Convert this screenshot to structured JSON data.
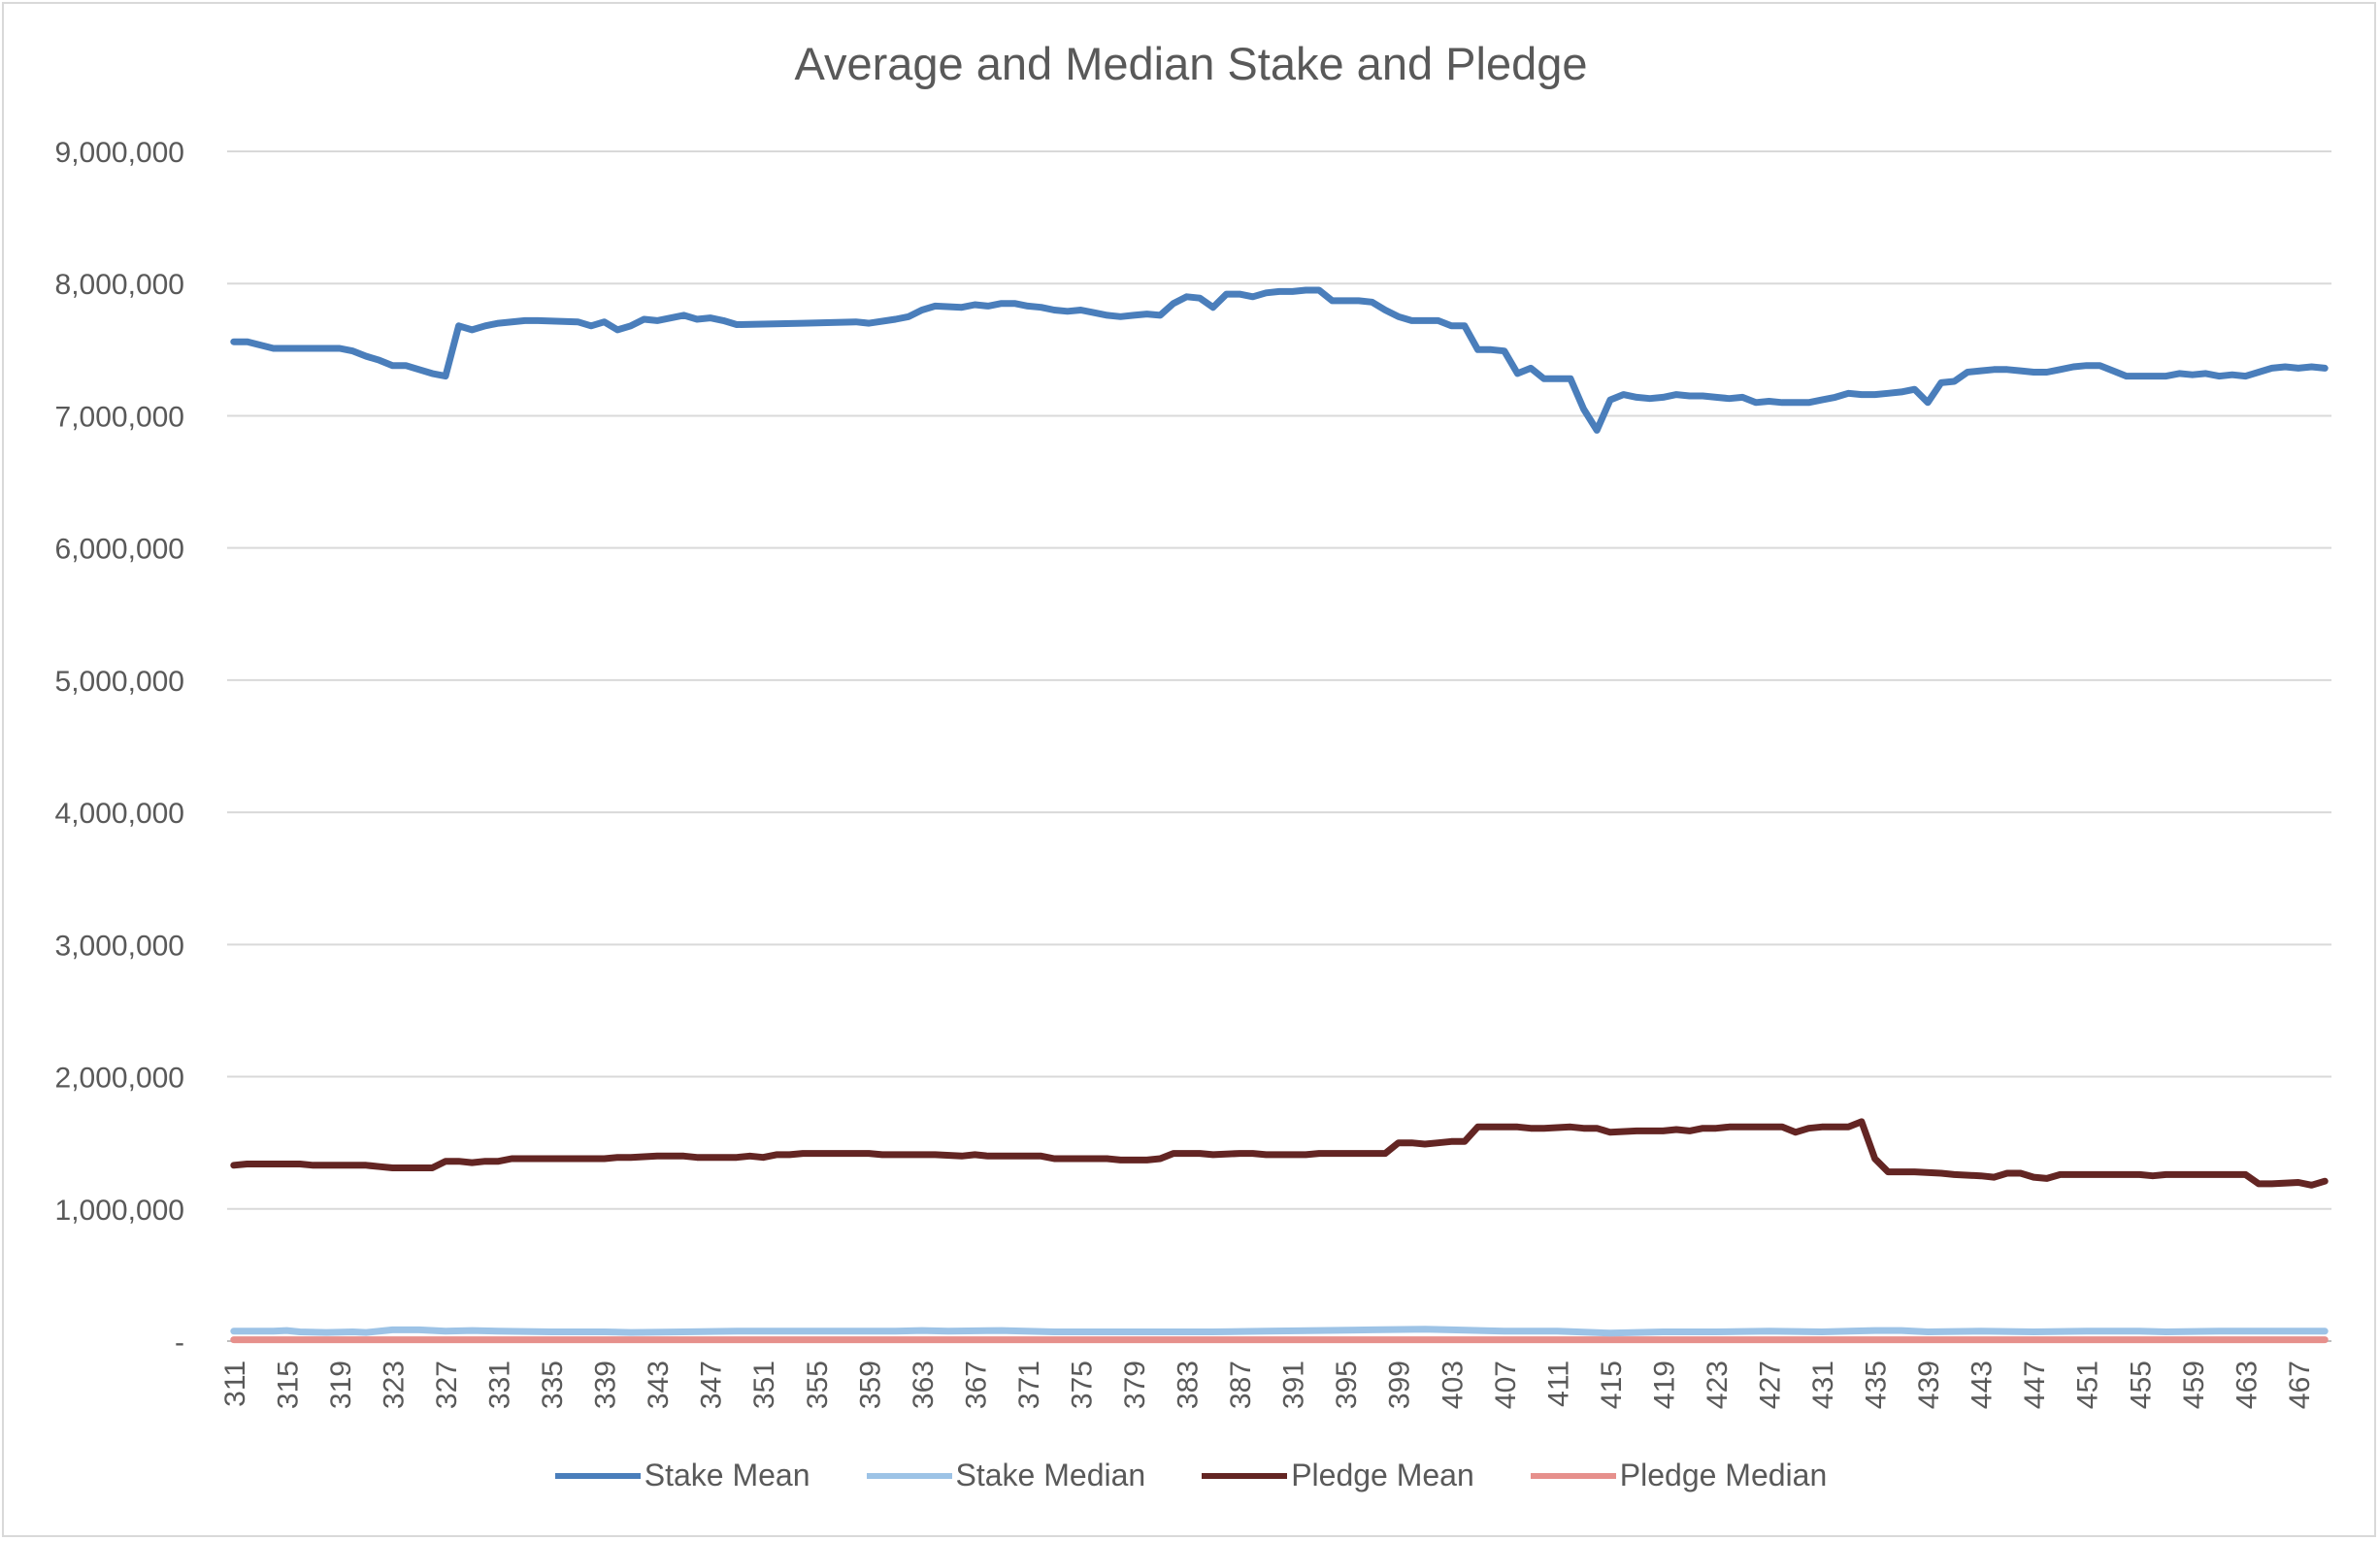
{
  "chart_data": {
    "type": "line",
    "title": "Average and Median Stake and Pledge",
    "xlabel": "",
    "ylabel": "",
    "x_start": 311,
    "x_end": 469,
    "x_tick_labels": [
      "311",
      "315",
      "319",
      "323",
      "327",
      "331",
      "335",
      "339",
      "343",
      "347",
      "351",
      "355",
      "359",
      "363",
      "367",
      "371",
      "375",
      "379",
      "383",
      "387",
      "391",
      "395",
      "399",
      "403",
      "407",
      "411",
      "415",
      "419",
      "423",
      "427",
      "431",
      "435",
      "439",
      "443",
      "447",
      "451",
      "455",
      "459",
      "463",
      "467"
    ],
    "y_tick_labels": [
      "-",
      "1,000,000",
      "2,000,000",
      "3,000,000",
      "4,000,000",
      "5,000,000",
      "6,000,000",
      "7,000,000",
      "8,000,000",
      "9,000,000"
    ],
    "ylim": [
      0,
      9000000
    ],
    "grid": "horizontal",
    "legend_position": "bottom",
    "series": [
      {
        "name": "Stake Mean",
        "color": "#4a7ebb",
        "points": [
          [
            311,
            7560000
          ],
          [
            312,
            7560000
          ],
          [
            314,
            7510000
          ],
          [
            319,
            7510000
          ],
          [
            320,
            7490000
          ],
          [
            321,
            7450000
          ],
          [
            322,
            7420000
          ],
          [
            323,
            7380000
          ],
          [
            324,
            7380000
          ],
          [
            325,
            7350000
          ],
          [
            326,
            7320000
          ],
          [
            327,
            7300000
          ],
          [
            328,
            7680000
          ],
          [
            329,
            7650000
          ],
          [
            330,
            7680000
          ],
          [
            331,
            7700000
          ],
          [
            333,
            7720000
          ],
          [
            334,
            7720000
          ],
          [
            337,
            7710000
          ],
          [
            338,
            7680000
          ],
          [
            339,
            7710000
          ],
          [
            340,
            7650000
          ],
          [
            341,
            7680000
          ],
          [
            342,
            7730000
          ],
          [
            343,
            7720000
          ],
          [
            345,
            7760000
          ],
          [
            346,
            7730000
          ],
          [
            347,
            7740000
          ],
          [
            348,
            7720000
          ],
          [
            349,
            7690000
          ],
          [
            354,
            7700000
          ],
          [
            358,
            7710000
          ],
          [
            359,
            7700000
          ],
          [
            361,
            7730000
          ],
          [
            362,
            7750000
          ],
          [
            363,
            7800000
          ],
          [
            364,
            7830000
          ],
          [
            366,
            7820000
          ],
          [
            367,
            7840000
          ],
          [
            368,
            7830000
          ],
          [
            369,
            7850000
          ],
          [
            370,
            7850000
          ],
          [
            371,
            7830000
          ],
          [
            372,
            7820000
          ],
          [
            373,
            7800000
          ],
          [
            374,
            7790000
          ],
          [
            375,
            7800000
          ],
          [
            376,
            7780000
          ],
          [
            377,
            7760000
          ],
          [
            378,
            7750000
          ],
          [
            379,
            7760000
          ],
          [
            380,
            7770000
          ],
          [
            381,
            7760000
          ],
          [
            382,
            7850000
          ],
          [
            383,
            7900000
          ],
          [
            384,
            7890000
          ],
          [
            385,
            7820000
          ],
          [
            386,
            7920000
          ],
          [
            387,
            7920000
          ],
          [
            388,
            7900000
          ],
          [
            389,
            7930000
          ],
          [
            390,
            7940000
          ],
          [
            391,
            7940000
          ],
          [
            392,
            7950000
          ],
          [
            393,
            7950000
          ],
          [
            394,
            7870000
          ],
          [
            395,
            7870000
          ],
          [
            396,
            7870000
          ],
          [
            397,
            7860000
          ],
          [
            398,
            7800000
          ],
          [
            399,
            7750000
          ],
          [
            400,
            7720000
          ],
          [
            401,
            7720000
          ],
          [
            402,
            7720000
          ],
          [
            403,
            7680000
          ],
          [
            404,
            7680000
          ],
          [
            405,
            7500000
          ],
          [
            406,
            7500000
          ],
          [
            407,
            7490000
          ],
          [
            408,
            7320000
          ],
          [
            409,
            7360000
          ],
          [
            410,
            7280000
          ],
          [
            411,
            7280000
          ],
          [
            412,
            7280000
          ],
          [
            413,
            7050000
          ],
          [
            414,
            6890000
          ],
          [
            415,
            7120000
          ],
          [
            416,
            7160000
          ],
          [
            417,
            7140000
          ],
          [
            418,
            7130000
          ],
          [
            419,
            7140000
          ],
          [
            420,
            7160000
          ],
          [
            421,
            7150000
          ],
          [
            422,
            7150000
          ],
          [
            423,
            7140000
          ],
          [
            424,
            7130000
          ],
          [
            425,
            7140000
          ],
          [
            426,
            7100000
          ],
          [
            427,
            7110000
          ],
          [
            428,
            7100000
          ],
          [
            429,
            7100000
          ],
          [
            430,
            7100000
          ],
          [
            431,
            7120000
          ],
          [
            432,
            7140000
          ],
          [
            433,
            7170000
          ],
          [
            434,
            7160000
          ],
          [
            435,
            7160000
          ],
          [
            436,
            7170000
          ],
          [
            437,
            7180000
          ],
          [
            438,
            7200000
          ],
          [
            439,
            7100000
          ],
          [
            440,
            7250000
          ],
          [
            441,
            7260000
          ],
          [
            442,
            7330000
          ],
          [
            443,
            7340000
          ],
          [
            444,
            7350000
          ],
          [
            445,
            7350000
          ],
          [
            446,
            7340000
          ],
          [
            447,
            7330000
          ],
          [
            448,
            7330000
          ],
          [
            449,
            7350000
          ],
          [
            450,
            7370000
          ],
          [
            451,
            7380000
          ],
          [
            452,
            7380000
          ],
          [
            453,
            7340000
          ],
          [
            454,
            7300000
          ],
          [
            455,
            7300000
          ],
          [
            456,
            7300000
          ],
          [
            457,
            7300000
          ],
          [
            458,
            7320000
          ],
          [
            459,
            7310000
          ],
          [
            460,
            7320000
          ],
          [
            461,
            7300000
          ],
          [
            462,
            7310000
          ],
          [
            463,
            7300000
          ],
          [
            464,
            7330000
          ],
          [
            465,
            7360000
          ],
          [
            466,
            7370000
          ],
          [
            467,
            7360000
          ],
          [
            468,
            7370000
          ],
          [
            469,
            7360000
          ]
        ]
      },
      {
        "name": "Stake Median",
        "color": "#9dc3e6",
        "points": [
          [
            311,
            75000
          ],
          [
            314,
            75000
          ],
          [
            315,
            80000
          ],
          [
            316,
            70000
          ],
          [
            318,
            65000
          ],
          [
            320,
            70000
          ],
          [
            321,
            65000
          ],
          [
            323,
            85000
          ],
          [
            325,
            85000
          ],
          [
            327,
            75000
          ],
          [
            329,
            80000
          ],
          [
            331,
            75000
          ],
          [
            335,
            70000
          ],
          [
            339,
            70000
          ],
          [
            341,
            65000
          ],
          [
            345,
            70000
          ],
          [
            349,
            75000
          ],
          [
            355,
            75000
          ],
          [
            361,
            75000
          ],
          [
            363,
            80000
          ],
          [
            365,
            75000
          ],
          [
            369,
            80000
          ],
          [
            373,
            70000
          ],
          [
            377,
            70000
          ],
          [
            381,
            70000
          ],
          [
            385,
            70000
          ],
          [
            389,
            75000
          ],
          [
            393,
            80000
          ],
          [
            397,
            85000
          ],
          [
            401,
            90000
          ],
          [
            403,
            85000
          ],
          [
            407,
            75000
          ],
          [
            411,
            75000
          ],
          [
            415,
            60000
          ],
          [
            419,
            70000
          ],
          [
            423,
            70000
          ],
          [
            427,
            75000
          ],
          [
            431,
            70000
          ],
          [
            435,
            80000
          ],
          [
            437,
            80000
          ],
          [
            439,
            70000
          ],
          [
            443,
            75000
          ],
          [
            447,
            70000
          ],
          [
            451,
            75000
          ],
          [
            455,
            75000
          ],
          [
            457,
            70000
          ],
          [
            461,
            75000
          ],
          [
            465,
            75000
          ],
          [
            469,
            75000
          ]
        ]
      },
      {
        "name": "Pledge Mean",
        "color": "#632523",
        "points": [
          [
            311,
            1330000
          ],
          [
            312,
            1340000
          ],
          [
            316,
            1340000
          ],
          [
            317,
            1330000
          ],
          [
            321,
            1330000
          ],
          [
            322,
            1320000
          ],
          [
            323,
            1310000
          ],
          [
            325,
            1310000
          ],
          [
            326,
            1310000
          ],
          [
            327,
            1360000
          ],
          [
            328,
            1360000
          ],
          [
            329,
            1350000
          ],
          [
            330,
            1360000
          ],
          [
            331,
            1360000
          ],
          [
            332,
            1380000
          ],
          [
            338,
            1380000
          ],
          [
            339,
            1380000
          ],
          [
            340,
            1390000
          ],
          [
            341,
            1390000
          ],
          [
            343,
            1400000
          ],
          [
            345,
            1400000
          ],
          [
            346,
            1390000
          ],
          [
            349,
            1390000
          ],
          [
            350,
            1400000
          ],
          [
            351,
            1390000
          ],
          [
            352,
            1410000
          ],
          [
            353,
            1410000
          ],
          [
            354,
            1420000
          ],
          [
            359,
            1420000
          ],
          [
            360,
            1410000
          ],
          [
            364,
            1410000
          ],
          [
            366,
            1400000
          ],
          [
            367,
            1410000
          ],
          [
            368,
            1400000
          ],
          [
            371,
            1400000
          ],
          [
            372,
            1400000
          ],
          [
            373,
            1380000
          ],
          [
            377,
            1380000
          ],
          [
            378,
            1370000
          ],
          [
            380,
            1370000
          ],
          [
            381,
            1380000
          ],
          [
            382,
            1420000
          ],
          [
            384,
            1420000
          ],
          [
            385,
            1410000
          ],
          [
            387,
            1420000
          ],
          [
            388,
            1420000
          ],
          [
            389,
            1410000
          ],
          [
            392,
            1410000
          ],
          [
            393,
            1420000
          ],
          [
            394,
            1420000
          ],
          [
            395,
            1420000
          ],
          [
            398,
            1420000
          ],
          [
            399,
            1500000
          ],
          [
            400,
            1500000
          ],
          [
            401,
            1490000
          ],
          [
            402,
            1500000
          ],
          [
            403,
            1510000
          ],
          [
            404,
            1510000
          ],
          [
            405,
            1620000
          ],
          [
            408,
            1620000
          ],
          [
            409,
            1610000
          ],
          [
            410,
            1610000
          ],
          [
            412,
            1620000
          ],
          [
            413,
            1610000
          ],
          [
            414,
            1610000
          ],
          [
            415,
            1580000
          ],
          [
            417,
            1590000
          ],
          [
            419,
            1590000
          ],
          [
            420,
            1600000
          ],
          [
            421,
            1590000
          ],
          [
            422,
            1610000
          ],
          [
            423,
            1610000
          ],
          [
            424,
            1620000
          ],
          [
            425,
            1620000
          ],
          [
            426,
            1620000
          ],
          [
            427,
            1620000
          ],
          [
            428,
            1620000
          ],
          [
            429,
            1580000
          ],
          [
            430,
            1610000
          ],
          [
            431,
            1620000
          ],
          [
            433,
            1620000
          ],
          [
            434,
            1660000
          ],
          [
            435,
            1380000
          ],
          [
            436,
            1280000
          ],
          [
            438,
            1280000
          ],
          [
            440,
            1270000
          ],
          [
            441,
            1260000
          ],
          [
            443,
            1250000
          ],
          [
            444,
            1240000
          ],
          [
            445,
            1270000
          ],
          [
            446,
            1270000
          ],
          [
            447,
            1240000
          ],
          [
            448,
            1230000
          ],
          [
            449,
            1260000
          ],
          [
            450,
            1260000
          ],
          [
            455,
            1260000
          ],
          [
            456,
            1250000
          ],
          [
            457,
            1260000
          ],
          [
            458,
            1260000
          ],
          [
            463,
            1260000
          ],
          [
            464,
            1190000
          ],
          [
            465,
            1190000
          ],
          [
            467,
            1200000
          ],
          [
            468,
            1180000
          ],
          [
            469,
            1210000
          ]
        ]
      },
      {
        "name": "Pledge Median",
        "color": "#e6908c",
        "points": [
          [
            311,
            10000
          ],
          [
            469,
            10000
          ]
        ]
      }
    ]
  }
}
